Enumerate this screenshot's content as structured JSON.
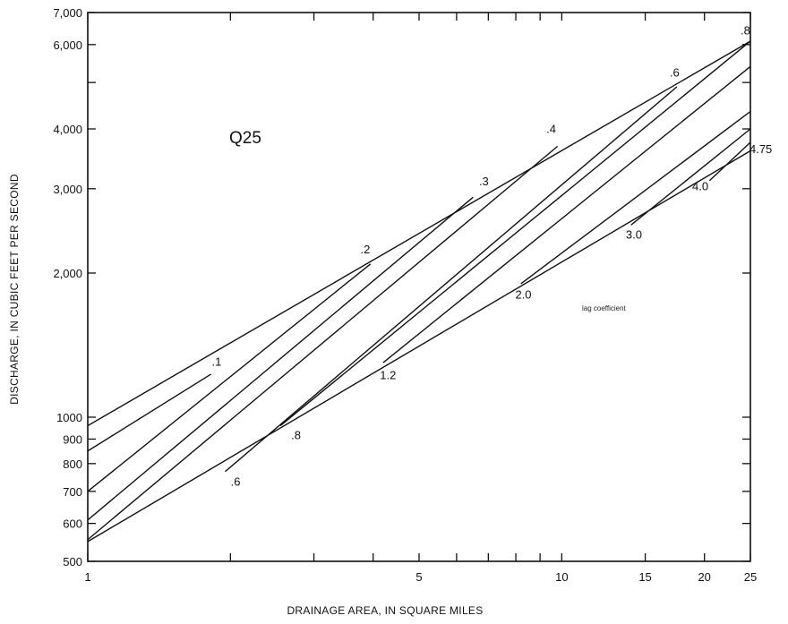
{
  "chart_data": {
    "type": "line",
    "title": "Q25",
    "xlabel": "DRAINAGE AREA, IN SQUARE MILES",
    "ylabel": "DISCHARGE, IN CUBIC FEET PER SECOND",
    "annotation": "lag coefficient",
    "xscale": "log",
    "yscale": "log",
    "xlim": [
      1,
      25
    ],
    "ylim": [
      500,
      7000
    ],
    "grid": false,
    "x_tick_labels": [
      {
        "value": 1,
        "label": "1"
      },
      {
        "value": 5,
        "label": "5"
      },
      {
        "value": 10,
        "label": "10"
      },
      {
        "value": 15,
        "label": "15"
      },
      {
        "value": 20,
        "label": "20"
      },
      {
        "value": 25,
        "label": "25"
      }
    ],
    "x_minor_ticks": [
      2,
      3,
      4,
      6,
      7,
      8,
      9
    ],
    "y_tick_labels": [
      {
        "value": 500,
        "label": "500"
      },
      {
        "value": 600,
        "label": "600"
      },
      {
        "value": 700,
        "label": "700"
      },
      {
        "value": 800,
        "label": "800"
      },
      {
        "value": 900,
        "label": "900"
      },
      {
        "value": 1000,
        "label": "1000"
      },
      {
        "value": 2000,
        "label": "2,000"
      },
      {
        "value": 3000,
        "label": "3,000"
      },
      {
        "value": 4000,
        "label": "4,000"
      },
      {
        "value": 6000,
        "label": "6,000"
      },
      {
        "value": 7000,
        "label": "7,000"
      }
    ],
    "y_minor_ticks": [
      5000
    ],
    "envelope": [
      {
        "name": "upper",
        "points": [
          [
            1,
            960
          ],
          [
            25,
            6100
          ]
        ]
      },
      {
        "name": "lower",
        "points": [
          [
            1,
            550
          ],
          [
            25,
            3600
          ]
        ]
      }
    ],
    "series": [
      {
        "label": ".1",
        "points": [
          [
            1,
            850
          ],
          [
            1.82,
            1230
          ]
        ],
        "label_at": [
          1.87,
          1280
        ]
      },
      {
        "label": ".2",
        "points": [
          [
            1,
            700
          ],
          [
            3.95,
            2090
          ]
        ],
        "label_at": [
          3.85,
          2200
        ]
      },
      {
        "label": ".3",
        "points": [
          [
            1,
            610
          ],
          [
            6.5,
            2880
          ]
        ],
        "label_at": [
          6.85,
          3050
        ]
      },
      {
        "label": ".4",
        "points": [
          [
            1,
            555
          ],
          [
            9.8,
            3680
          ]
        ],
        "label_at": [
          9.5,
          3920
        ]
      },
      {
        "label": ".6",
        "points": [
          [
            1.95,
            770
          ],
          [
            17.5,
            4900
          ]
        ],
        "label_at": [
          2.05,
          720
        ]
      },
      {
        "label": ".8",
        "points": [
          [
            2.55,
            960
          ],
          [
            25,
            6100
          ]
        ],
        "label_at": [
          2.75,
          900
        ]
      },
      {
        "label": "1.2",
        "points": [
          [
            4.2,
            1300
          ],
          [
            25,
            5400
          ]
        ],
        "label_at": [
          4.3,
          1200
        ]
      },
      {
        "label": "2.0",
        "points": [
          [
            8.2,
            1900
          ],
          [
            25,
            4350
          ]
        ],
        "label_at": [
          8.3,
          1770
        ]
      },
      {
        "label": "3.0",
        "points": [
          [
            14,
            2520
          ],
          [
            25,
            4000
          ]
        ],
        "label_at": [
          14.2,
          2360
        ]
      },
      {
        "label": "4.0",
        "points": [
          [
            20.5,
            3120
          ],
          [
            25,
            3750
          ]
        ],
        "label_at": [
          19.6,
          2980
        ]
      },
      {
        "label": "4.75",
        "points": [],
        "label_at": [
          26.3,
          3560
        ]
      }
    ],
    "upper_extra_labels": [
      {
        "label": ".6",
        "at": [
          17.3,
          5150
        ]
      },
      {
        "label": ".8",
        "at": [
          24.4,
          6300
        ]
      }
    ]
  }
}
